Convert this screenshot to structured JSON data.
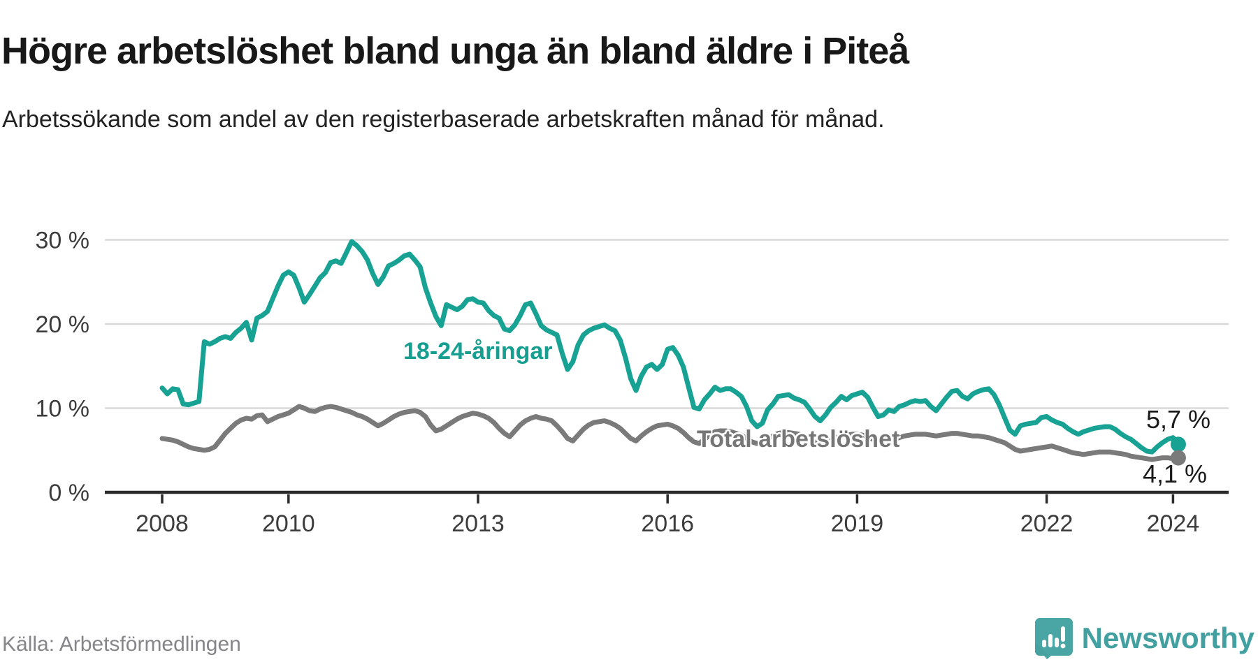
{
  "header": {
    "title": "Högre arbetslöshet bland unga än bland äldre i Piteå",
    "subtitle": "Arbetssökande som andel av den registerbaserade arbetskraften månad för månad."
  },
  "footer": {
    "source": "Källa: Arbetsförmedlingen",
    "brand": "Newsworthy",
    "logo_icon": "bar-chart-speech-bubble-icon"
  },
  "colors": {
    "youth_line": "#17a294",
    "total_line": "#7a7a7a",
    "youth_label": "#169e90",
    "total_label": "#767676",
    "grid": "#d9d9d9",
    "axis": "#2b2b2b",
    "tick_text": "#3c3c3c",
    "title_text": "#181818",
    "source_text": "#85858a",
    "brand_teal": "#42a1a0",
    "logo_fold": "#3a8f8e"
  },
  "chart_data": {
    "type": "line",
    "title": "Arbetssökande som andel av den registerbaserade arbetskraften månad för månad",
    "x_start_year": 2008,
    "x_step_months": 1,
    "x_end": "2024-02",
    "x_tick_years": [
      2008,
      2010,
      2013,
      2016,
      2019,
      2022,
      2024
    ],
    "y_ticks": [
      0,
      10,
      20,
      30
    ],
    "y_tick_suffix": " %",
    "ylim": [
      0,
      32
    ],
    "grid": "horizontal-only",
    "legend_position": "inline-annotations",
    "series": [
      {
        "name": "18-24-åringar",
        "color": "#17a294",
        "end_label": "5,7 %",
        "end_value": 5.7,
        "values": [
          12.4,
          11.7,
          12.3,
          12.2,
          10.5,
          10.4,
          10.6,
          10.8,
          17.9,
          17.6,
          17.9,
          18.3,
          18.5,
          18.3,
          19.0,
          19.5,
          20.2,
          18.1,
          20.7,
          21.0,
          21.5,
          23.0,
          24.5,
          25.8,
          26.2,
          25.8,
          24.3,
          22.6,
          23.5,
          24.5,
          25.5,
          26.1,
          27.3,
          27.5,
          27.2,
          28.5,
          29.8,
          29.3,
          28.6,
          27.6,
          26.0,
          24.7,
          25.6,
          26.9,
          27.2,
          27.6,
          28.1,
          28.3,
          27.6,
          26.8,
          24.3,
          22.5,
          20.9,
          19.8,
          22.3,
          22.0,
          21.7,
          22.1,
          22.9,
          23.0,
          22.6,
          22.5,
          21.6,
          21.0,
          20.7,
          19.4,
          19.2,
          19.9,
          21.0,
          22.3,
          22.5,
          21.2,
          19.8,
          19.3,
          19.0,
          18.7,
          16.5,
          14.6,
          15.5,
          17.5,
          18.7,
          19.2,
          19.5,
          19.7,
          19.9,
          19.5,
          19.2,
          18.1,
          16.0,
          13.5,
          12.1,
          13.8,
          14.9,
          15.2,
          14.6,
          15.2,
          17.0,
          17.2,
          16.3,
          14.9,
          12.5,
          10.1,
          9.9,
          11.0,
          11.7,
          12.5,
          12.1,
          12.3,
          12.3,
          11.9,
          11.4,
          10.2,
          8.5,
          7.8,
          8.2,
          9.8,
          10.5,
          11.4,
          11.5,
          11.6,
          11.2,
          11.0,
          10.7,
          9.9,
          9.0,
          8.5,
          9.2,
          10.1,
          10.7,
          11.4,
          11.0,
          11.5,
          11.7,
          11.9,
          11.3,
          10.1,
          9.0,
          9.2,
          9.8,
          9.6,
          10.2,
          10.4,
          10.7,
          10.9,
          10.8,
          10.9,
          10.2,
          9.7,
          10.5,
          11.3,
          12.0,
          12.1,
          11.4,
          11.1,
          11.7,
          12.0,
          12.2,
          12.3,
          11.6,
          10.4,
          8.9,
          7.4,
          6.9,
          7.9,
          8.1,
          8.2,
          8.3,
          8.9,
          9.0,
          8.6,
          8.3,
          8.1,
          7.6,
          7.2,
          6.9,
          7.2,
          7.4,
          7.6,
          7.7,
          7.8,
          7.8,
          7.5,
          7.0,
          6.6,
          6.3,
          5.8,
          5.3,
          4.9,
          4.8,
          5.4,
          5.9,
          6.3,
          6.5,
          5.7
        ]
      },
      {
        "name": "Total arbetslöshet",
        "color": "#7a7a7a",
        "end_label": "4,1 %",
        "end_value": 4.1,
        "values": [
          6.4,
          6.3,
          6.2,
          6.0,
          5.7,
          5.4,
          5.2,
          5.1,
          5.0,
          5.1,
          5.4,
          6.2,
          7.0,
          7.6,
          8.2,
          8.6,
          8.8,
          8.7,
          9.1,
          9.2,
          8.4,
          8.7,
          9.0,
          9.2,
          9.4,
          9.8,
          10.2,
          10.0,
          9.7,
          9.6,
          9.9,
          10.1,
          10.2,
          10.1,
          9.9,
          9.7,
          9.5,
          9.2,
          9.0,
          8.7,
          8.3,
          7.9,
          8.2,
          8.6,
          9.0,
          9.3,
          9.5,
          9.6,
          9.7,
          9.5,
          9.0,
          8.0,
          7.3,
          7.5,
          7.9,
          8.3,
          8.7,
          9.0,
          9.2,
          9.4,
          9.3,
          9.1,
          8.8,
          8.3,
          7.6,
          7.0,
          6.6,
          7.3,
          8.0,
          8.5,
          8.8,
          9.0,
          8.8,
          8.7,
          8.5,
          7.9,
          7.2,
          6.4,
          6.1,
          6.8,
          7.5,
          8.0,
          8.3,
          8.4,
          8.5,
          8.3,
          8.0,
          7.6,
          7.0,
          6.4,
          6.1,
          6.7,
          7.2,
          7.6,
          7.9,
          8.0,
          8.1,
          7.9,
          7.6,
          7.1,
          6.5,
          6.0,
          5.8,
          6.3,
          6.8,
          7.2,
          7.3,
          7.3,
          7.2,
          7.0,
          6.8,
          6.4,
          6.0,
          5.8,
          6.0,
          6.4,
          6.7,
          7.0,
          7.1,
          7.1,
          7.0,
          6.9,
          6.7,
          6.3,
          5.9,
          5.7,
          5.9,
          6.2,
          6.5,
          6.7,
          6.8,
          6.9,
          6.9,
          6.8,
          6.6,
          6.3,
          6.0,
          5.9,
          6.1,
          6.3,
          6.5,
          6.7,
          6.8,
          6.9,
          6.9,
          6.9,
          6.8,
          6.7,
          6.8,
          6.9,
          7.0,
          7.0,
          6.9,
          6.8,
          6.7,
          6.7,
          6.6,
          6.5,
          6.3,
          6.1,
          5.9,
          5.5,
          5.1,
          4.9,
          5.0,
          5.1,
          5.2,
          5.3,
          5.4,
          5.5,
          5.3,
          5.1,
          4.9,
          4.7,
          4.6,
          4.5,
          4.6,
          4.7,
          4.8,
          4.8,
          4.8,
          4.7,
          4.6,
          4.5,
          4.3,
          4.2,
          4.1,
          4.0,
          3.9,
          4.0,
          4.1,
          4.1,
          4.0,
          4.1
        ]
      }
    ]
  }
}
